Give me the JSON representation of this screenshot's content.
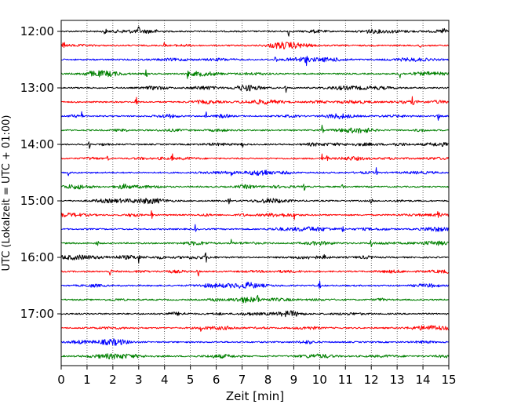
{
  "chart_data": {
    "type": "line",
    "title": "",
    "xlabel": "Zeit  [min]",
    "ylabel": "UTC (Lokalzeit = UTC + 01:00)",
    "xlim": [
      0,
      15
    ],
    "x_ticks": [
      "0",
      "1",
      "2",
      "3",
      "4",
      "5",
      "6",
      "7",
      "8",
      "9",
      "10",
      "11",
      "12",
      "13",
      "14",
      "15"
    ],
    "y_ticks": [
      "12:00",
      "13:00",
      "14:00",
      "15:00",
      "16:00",
      "17:00"
    ],
    "grid": "vertical dotted lines at each minute",
    "trace_interval_minutes": 15,
    "start_time": "12:00",
    "end_time": "17:45",
    "colors": [
      "#000000",
      "#ff0000",
      "#0000ff",
      "#008000"
    ],
    "series": [
      {
        "row_start": "12:00",
        "color": "#000000",
        "spikes_min": [
          1.7,
          3.0,
          8.8,
          14.8
        ]
      },
      {
        "row_start": "12:15",
        "color": "#ff0000",
        "spikes_min": [
          0.1,
          4.0,
          13.9
        ]
      },
      {
        "row_start": "12:30",
        "color": "#0000ff",
        "spikes_min": [
          8.3,
          9.5
        ]
      },
      {
        "row_start": "12:45",
        "color": "#008000",
        "spikes_min": [
          3.3,
          4.9,
          13.1
        ]
      },
      {
        "row_start": "13:00",
        "color": "#000000",
        "spikes_min": [
          8.7
        ]
      },
      {
        "row_start": "13:15",
        "color": "#ff0000",
        "spikes_min": [
          2.9,
          13.6
        ]
      },
      {
        "row_start": "13:30",
        "color": "#0000ff",
        "spikes_min": [
          0.8,
          5.6,
          14.6
        ]
      },
      {
        "row_start": "13:45",
        "color": "#008000",
        "spikes_min": [
          2.5,
          10.1
        ]
      },
      {
        "row_start": "14:00",
        "color": "#000000",
        "spikes_min": [
          1.1,
          7.0,
          12.9
        ]
      },
      {
        "row_start": "14:15",
        "color": "#ff0000",
        "spikes_min": [
          1.8,
          4.3,
          10.1,
          10.3
        ]
      },
      {
        "row_start": "14:30",
        "color": "#0000ff",
        "spikes_min": [
          0.3,
          6.6,
          12.2
        ]
      },
      {
        "row_start": "14:45",
        "color": "#008000",
        "spikes_min": [
          3.8,
          9.4,
          10.9
        ]
      },
      {
        "row_start": "15:00",
        "color": "#000000",
        "spikes_min": [
          6.5,
          12.0
        ]
      },
      {
        "row_start": "15:15",
        "color": "#ff0000",
        "spikes_min": [
          3.5,
          9.0,
          14.6
        ]
      },
      {
        "row_start": "15:30",
        "color": "#0000ff",
        "spikes_min": [
          5.2,
          10.9
        ]
      },
      {
        "row_start": "15:45",
        "color": "#008000",
        "spikes_min": [
          1.4,
          6.6,
          12.0
        ]
      },
      {
        "row_start": "16:00",
        "color": "#000000",
        "spikes_min": [
          3.0,
          5.6,
          10.2
        ]
      },
      {
        "row_start": "16:15",
        "color": "#ff0000",
        "spikes_min": [
          1.9,
          5.3
        ]
      },
      {
        "row_start": "16:30",
        "color": "#0000ff",
        "spikes_min": [
          10.0
        ]
      },
      {
        "row_start": "16:45",
        "color": "#008000",
        "spikes_min": [
          7.6
        ]
      },
      {
        "row_start": "17:00",
        "color": "#000000",
        "spikes_min": []
      },
      {
        "row_start": "17:15",
        "color": "#ff0000",
        "spikes_min": [
          5.4
        ]
      },
      {
        "row_start": "17:30",
        "color": "#0000ff",
        "spikes_min": []
      },
      {
        "row_start": "17:45",
        "color": "#008000",
        "spikes_min": []
      }
    ]
  }
}
